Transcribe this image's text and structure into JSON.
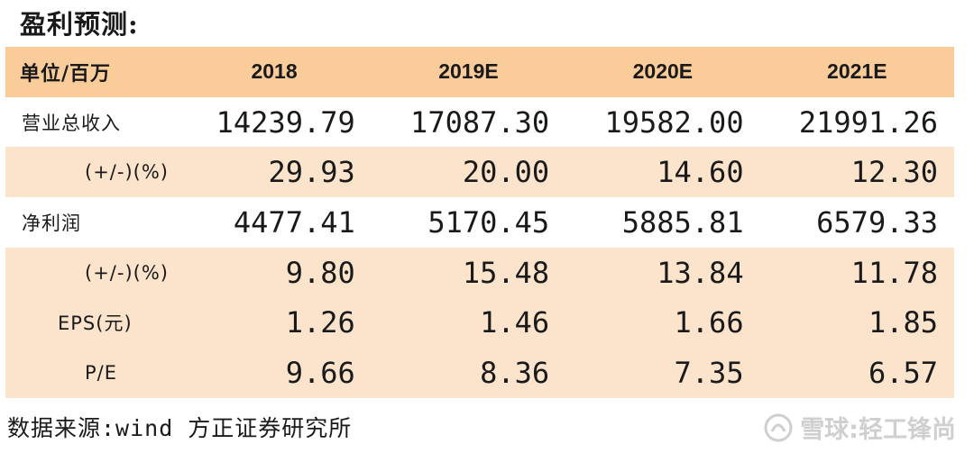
{
  "title": "盈利预测:",
  "table": {
    "unit_header": "单位/百万",
    "years": [
      "2018",
      "2019E",
      "2020E",
      "2021E"
    ],
    "rows": [
      {
        "label": "营业总收入",
        "indent": 0,
        "values": [
          "14239.79",
          "17087.30",
          "19582.00",
          "21991.26"
        ]
      },
      {
        "label": "(+/-)(%)",
        "indent": 2,
        "values": [
          "29.93",
          "20.00",
          "14.60",
          "12.30"
        ]
      },
      {
        "label": "净利润",
        "indent": 0,
        "values": [
          "4477.41",
          "5170.45",
          "5885.81",
          "6579.33"
        ]
      },
      {
        "label": "(+/-)(%)",
        "indent": 2,
        "values": [
          "9.80",
          "15.48",
          "13.84",
          "11.78"
        ]
      },
      {
        "label": "EPS(元)",
        "indent": 1,
        "values": [
          "1.26",
          "1.46",
          "1.66",
          "1.85"
        ]
      },
      {
        "label": "P/E",
        "indent": 2,
        "values": [
          "9.66",
          "8.36",
          "7.35",
          "6.57"
        ]
      }
    ]
  },
  "footer": "数据来源:wind 方正证券研究所",
  "watermark": {
    "icon": "snowball-logo-icon",
    "text": "雪球:轻工锋尚"
  },
  "colors": {
    "header_bg": "#f9cc9a",
    "shade_bg": "#fbe3cc"
  }
}
